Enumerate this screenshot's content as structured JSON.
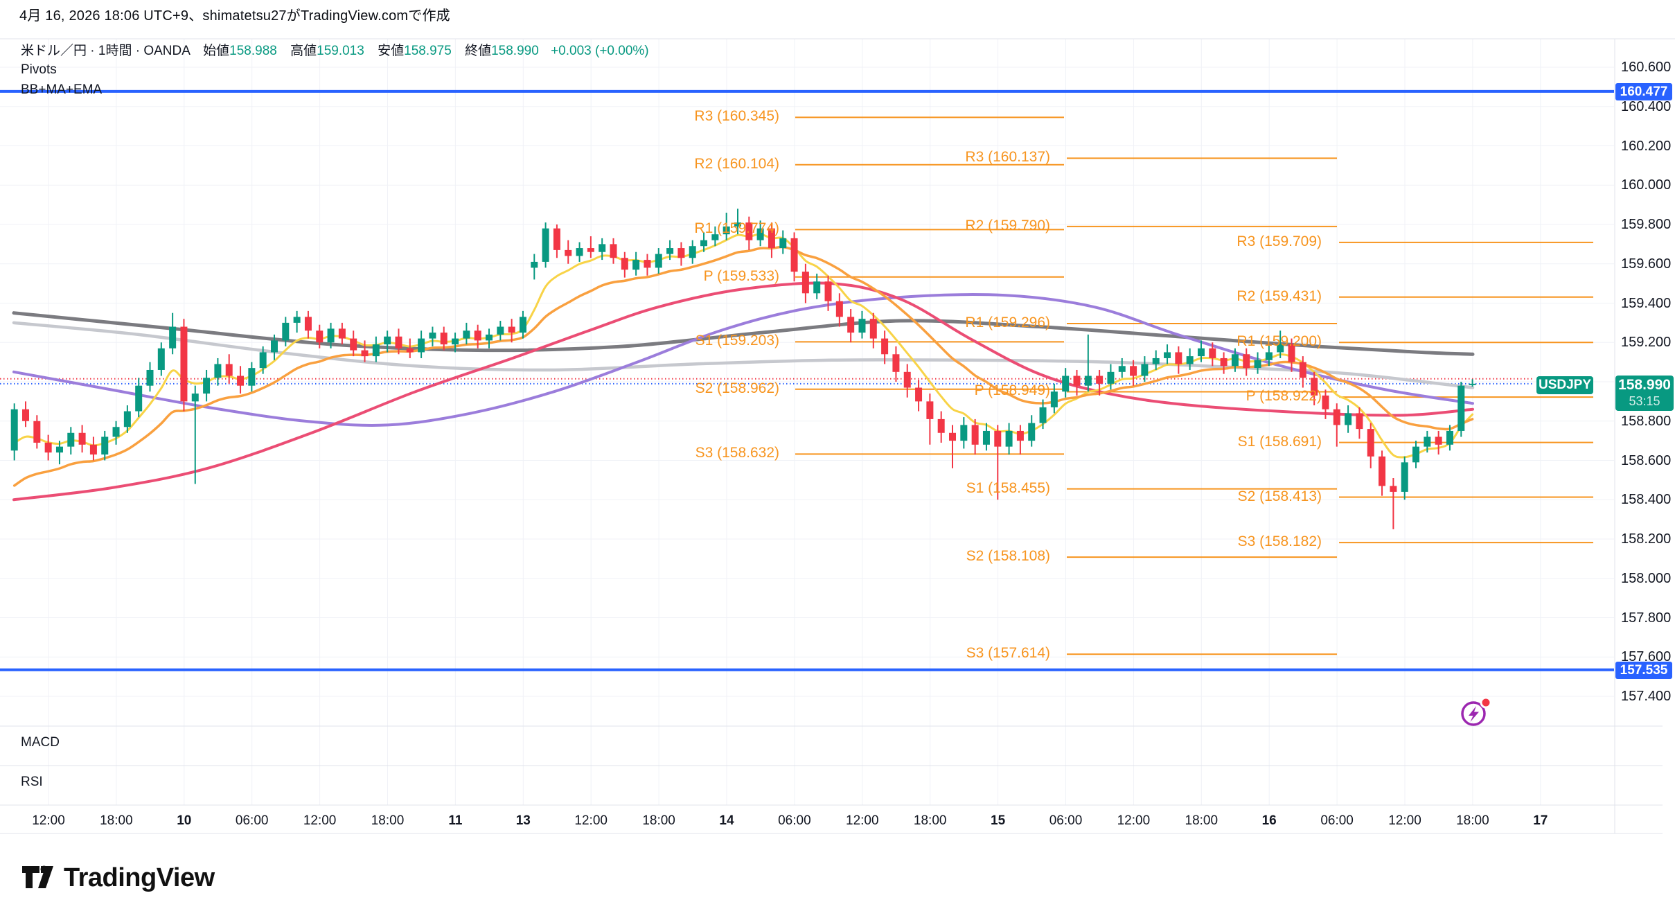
{
  "header": {
    "created_line": "4月 16, 2026 18:06 UTC+9、shimatetsu27がTradingView.comで作成"
  },
  "symbol_row": {
    "title": "米ドル／円 · 1時間 · OANDA",
    "open_label": "始値",
    "open": "158.988",
    "high_label": "高値",
    "high": "159.013",
    "low_label": "安値",
    "low": "158.975",
    "close_label": "終値",
    "close": "158.990",
    "change": "+0.003 (+0.00%)"
  },
  "legend": {
    "indicator1": "Pivots",
    "indicator2": "BB+MA+EMA"
  },
  "panes": {
    "macd_label": "MACD",
    "rsi_label": "RSI"
  },
  "price_tag": {
    "symbol": "USDJPY",
    "price": "158.990",
    "countdown": "53:15"
  },
  "axis_tags": {
    "upper_band": "160.477",
    "lower_band": "157.535"
  },
  "logo": {
    "text": "TradingView"
  },
  "colors": {
    "up": "#089981",
    "down": "#f23645",
    "blue": "#2962ff",
    "pivot": "#f7941e",
    "ema_fast": "#f8d347",
    "ema_slow": "#f9a03f",
    "ma_pink": "#eb4d74",
    "ma_purple": "#9b7ddb",
    "ma_gray_dark": "#7b7b80",
    "ma_gray_light": "#c6c8ce",
    "grid": "#f0f2f7",
    "separator": "#e0e3eb",
    "text": "#131722",
    "flash_purple": "#9c27b0",
    "flash_dot": "#f23645"
  },
  "chart_data": {
    "type": "candlestick",
    "symbol": "USDJPY",
    "timeframe": "1時間",
    "source": "OANDA",
    "ohlc_current": {
      "open": 158.988,
      "high": 159.013,
      "low": 158.975,
      "close": 158.99,
      "change_text": "+0.003 (+0.00%)"
    },
    "y_axis": {
      "min": 157.4,
      "max": 160.6,
      "tick_step": 0.2,
      "ticks": [
        160.6,
        160.4,
        160.2,
        160.0,
        159.8,
        159.6,
        159.4,
        159.2,
        159.0,
        158.8,
        158.6,
        158.4,
        158.2,
        158.0,
        157.8,
        157.6,
        157.4
      ]
    },
    "x_axis": {
      "labels": [
        "12:00",
        "18:00",
        "10",
        "06:00",
        "12:00",
        "18:00",
        "11",
        "13",
        "12:00",
        "18:00",
        "14",
        "06:00",
        "12:00",
        "18:00",
        "15",
        "06:00",
        "12:00",
        "18:00",
        "16",
        "06:00",
        "12:00",
        "18:00",
        "17"
      ]
    },
    "levels": {
      "upper_band": 160.477,
      "lower_band": 157.535
    },
    "price_lines": {
      "close_line": 158.99,
      "reference_line": 159.015
    },
    "pivot_sets": [
      {
        "pivots": [
          [
            "R3",
            160.345
          ],
          [
            "R2",
            160.104
          ],
          [
            "R1",
            159.774
          ],
          [
            "P",
            159.533
          ],
          [
            "S1",
            159.203
          ],
          [
            "S2",
            158.962
          ],
          [
            "S3",
            158.632
          ]
        ]
      },
      {
        "pivots": [
          [
            "R3",
            160.137
          ],
          [
            "R2",
            159.79
          ],
          [
            "R1",
            159.296
          ],
          [
            "P",
            158.949
          ],
          [
            "S1",
            158.455
          ],
          [
            "S2",
            158.108
          ],
          [
            "S3",
            157.614
          ]
        ]
      },
      {
        "pivots": [
          [
            "R3",
            159.709
          ],
          [
            "R2",
            159.431
          ],
          [
            "R1",
            159.2
          ],
          [
            "P",
            158.922
          ],
          [
            "S1",
            158.691
          ],
          [
            "S2",
            158.413
          ],
          [
            "S3",
            158.182
          ]
        ]
      }
    ],
    "candles": [
      [
        158.65,
        158.89,
        158.6,
        158.86
      ],
      [
        158.86,
        158.9,
        158.77,
        158.8
      ],
      [
        158.8,
        158.83,
        158.66,
        158.69
      ],
      [
        158.69,
        158.73,
        158.6,
        158.64
      ],
      [
        158.64,
        158.7,
        158.58,
        158.67
      ],
      [
        158.67,
        158.77,
        158.63,
        158.74
      ],
      [
        158.74,
        158.78,
        158.64,
        158.68
      ],
      [
        158.68,
        158.72,
        158.6,
        158.63
      ],
      [
        158.63,
        158.75,
        158.6,
        158.72
      ],
      [
        158.72,
        158.8,
        158.68,
        158.77
      ],
      [
        158.77,
        158.88,
        158.74,
        158.85
      ],
      [
        158.85,
        159.02,
        158.82,
        158.98
      ],
      [
        158.98,
        159.1,
        158.95,
        159.06
      ],
      [
        159.06,
        159.2,
        159.03,
        159.17
      ],
      [
        159.17,
        159.35,
        159.14,
        159.28
      ],
      [
        159.28,
        159.32,
        158.85,
        158.9
      ],
      [
        158.9,
        158.98,
        158.48,
        158.94
      ],
      [
        158.94,
        159.06,
        158.9,
        159.02
      ],
      [
        159.02,
        159.12,
        158.98,
        159.09
      ],
      [
        159.09,
        159.14,
        158.99,
        159.03
      ],
      [
        159.03,
        159.08,
        158.94,
        158.98
      ],
      [
        158.98,
        159.1,
        158.95,
        159.07
      ],
      [
        159.07,
        159.18,
        159.04,
        159.15
      ],
      [
        159.15,
        159.24,
        159.11,
        159.21
      ],
      [
        159.21,
        159.33,
        159.18,
        159.3
      ],
      [
        159.3,
        159.36,
        159.25,
        159.33
      ],
      [
        159.33,
        159.36,
        159.22,
        159.26
      ],
      [
        159.26,
        159.29,
        159.17,
        159.2
      ],
      [
        159.2,
        159.3,
        159.17,
        159.27
      ],
      [
        159.27,
        159.3,
        159.19,
        159.22
      ],
      [
        159.22,
        159.26,
        159.13,
        159.16
      ],
      [
        159.16,
        159.21,
        159.1,
        159.13
      ],
      [
        159.13,
        159.23,
        159.1,
        159.19
      ],
      [
        159.19,
        159.26,
        159.15,
        159.23
      ],
      [
        159.23,
        159.27,
        159.14,
        159.17
      ],
      [
        159.17,
        159.22,
        159.12,
        159.15
      ],
      [
        159.15,
        159.26,
        159.12,
        159.22
      ],
      [
        159.22,
        159.28,
        159.18,
        159.25
      ],
      [
        159.25,
        159.28,
        159.16,
        159.19
      ],
      [
        159.19,
        159.25,
        159.15,
        159.22
      ],
      [
        159.22,
        159.3,
        159.19,
        159.26
      ],
      [
        159.26,
        159.29,
        159.17,
        159.21
      ],
      [
        159.21,
        159.27,
        159.17,
        159.24
      ],
      [
        159.24,
        159.31,
        159.21,
        159.28
      ],
      [
        159.28,
        159.32,
        159.2,
        159.25
      ],
      [
        159.25,
        159.36,
        159.22,
        159.33
      ],
      [
        159.58,
        159.65,
        159.52,
        159.61
      ],
      [
        159.61,
        159.81,
        159.58,
        159.78
      ],
      [
        159.78,
        159.8,
        159.63,
        159.67
      ],
      [
        159.67,
        159.72,
        159.6,
        159.64
      ],
      [
        159.64,
        159.71,
        159.61,
        159.68
      ],
      [
        159.68,
        159.74,
        159.63,
        159.66
      ],
      [
        159.66,
        159.73,
        159.62,
        159.7
      ],
      [
        159.7,
        159.73,
        159.6,
        159.63
      ],
      [
        159.63,
        159.66,
        159.53,
        159.57
      ],
      [
        159.57,
        159.66,
        159.54,
        159.62
      ],
      [
        159.62,
        159.65,
        159.54,
        159.58
      ],
      [
        159.58,
        159.68,
        159.55,
        159.65
      ],
      [
        159.65,
        159.72,
        159.62,
        159.68
      ],
      [
        159.68,
        159.71,
        159.59,
        159.63
      ],
      [
        159.63,
        159.72,
        159.6,
        159.69
      ],
      [
        159.69,
        159.76,
        159.66,
        159.72
      ],
      [
        159.72,
        159.79,
        159.69,
        159.75
      ],
      [
        159.75,
        159.86,
        159.72,
        159.79
      ],
      [
        159.79,
        159.88,
        159.75,
        159.81
      ],
      [
        159.81,
        159.84,
        159.67,
        159.72
      ],
      [
        159.72,
        159.82,
        159.69,
        159.78
      ],
      [
        159.78,
        159.81,
        159.63,
        159.68
      ],
      [
        159.68,
        159.77,
        159.65,
        159.73
      ],
      [
        159.73,
        159.76,
        159.51,
        159.56
      ],
      [
        159.56,
        159.6,
        159.4,
        159.45
      ],
      [
        159.45,
        159.55,
        159.42,
        159.51
      ],
      [
        159.51,
        159.54,
        159.36,
        159.41
      ],
      [
        159.41,
        159.45,
        159.28,
        159.33
      ],
      [
        159.33,
        159.37,
        159.2,
        159.25
      ],
      [
        159.25,
        159.36,
        159.22,
        159.32
      ],
      [
        159.32,
        159.35,
        159.17,
        159.22
      ],
      [
        159.22,
        159.26,
        159.09,
        159.14
      ],
      [
        159.14,
        159.18,
        159.0,
        159.05
      ],
      [
        159.05,
        159.09,
        158.92,
        158.97
      ],
      [
        158.97,
        159.01,
        158.85,
        158.9
      ],
      [
        158.9,
        158.94,
        158.68,
        158.81
      ],
      [
        158.81,
        158.85,
        158.69,
        158.74
      ],
      [
        158.74,
        158.78,
        158.56,
        158.7
      ],
      [
        158.7,
        158.82,
        158.66,
        158.78
      ],
      [
        158.78,
        158.81,
        158.63,
        158.68
      ],
      [
        158.68,
        158.79,
        158.65,
        158.75
      ],
      [
        158.75,
        158.78,
        158.4,
        158.67
      ],
      [
        158.67,
        158.79,
        158.63,
        158.75
      ],
      [
        158.75,
        158.78,
        158.63,
        158.7
      ],
      [
        158.7,
        158.83,
        158.67,
        158.79
      ],
      [
        158.79,
        158.91,
        158.76,
        158.87
      ],
      [
        158.87,
        158.99,
        158.84,
        158.95
      ],
      [
        158.95,
        159.07,
        158.92,
        159.03
      ],
      [
        159.03,
        159.06,
        158.93,
        158.98
      ],
      [
        158.98,
        159.24,
        158.95,
        159.03
      ],
      [
        159.03,
        159.06,
        158.93,
        158.99
      ],
      [
        158.99,
        159.09,
        158.96,
        159.05
      ],
      [
        159.05,
        159.12,
        159.02,
        159.08
      ],
      [
        159.08,
        159.11,
        158.98,
        159.03
      ],
      [
        159.03,
        159.13,
        159.0,
        159.09
      ],
      [
        159.09,
        159.16,
        159.06,
        159.12
      ],
      [
        159.12,
        159.19,
        159.09,
        159.15
      ],
      [
        159.15,
        159.18,
        159.04,
        159.09
      ],
      [
        159.09,
        159.17,
        159.06,
        159.13
      ],
      [
        159.13,
        159.21,
        159.1,
        159.17
      ],
      [
        159.17,
        159.2,
        159.08,
        159.12
      ],
      [
        159.12,
        159.15,
        159.04,
        159.08
      ],
      [
        159.08,
        159.17,
        159.05,
        159.14
      ],
      [
        159.14,
        159.17,
        159.03,
        159.07
      ],
      [
        159.07,
        159.15,
        159.04,
        159.11
      ],
      [
        159.11,
        159.19,
        159.08,
        159.15
      ],
      [
        159.15,
        159.26,
        159.12,
        159.19
      ],
      [
        159.19,
        159.22,
        159.05,
        159.1
      ],
      [
        159.1,
        159.13,
        158.97,
        159.02
      ],
      [
        159.02,
        159.05,
        158.88,
        158.93
      ],
      [
        158.93,
        158.96,
        158.81,
        158.86
      ],
      [
        158.86,
        158.89,
        158.67,
        158.78
      ],
      [
        158.78,
        158.88,
        158.74,
        158.84
      ],
      [
        158.84,
        158.87,
        158.71,
        158.76
      ],
      [
        158.76,
        158.79,
        158.56,
        158.62
      ],
      [
        158.62,
        158.65,
        158.42,
        158.47
      ],
      [
        158.47,
        158.51,
        158.25,
        158.44
      ],
      [
        158.44,
        158.62,
        158.4,
        158.59
      ],
      [
        158.59,
        158.7,
        158.56,
        158.67
      ],
      [
        158.67,
        158.75,
        158.64,
        158.72
      ],
      [
        158.72,
        158.75,
        158.63,
        158.68
      ],
      [
        158.68,
        158.78,
        158.65,
        158.75
      ],
      [
        158.75,
        159.0,
        158.72,
        158.98
      ],
      [
        158.988,
        159.013,
        158.975,
        158.99
      ]
    ],
    "ma_lines": {
      "computed": [
        {
          "name": "ema-fast",
          "type": "ema",
          "period": 6,
          "seed": 158.62,
          "color_key": "ema_fast",
          "width": 3
        },
        {
          "name": "ema-slow",
          "type": "ema",
          "period": 16,
          "seed": 158.42,
          "color_key": "ema_slow",
          "width": 3.5
        }
      ],
      "waypoint_lines": [
        {
          "name": "ma-gray-light",
          "color_key": "ma_gray_light",
          "width": 4.5,
          "points": [
            [
              20,
              159.3
            ],
            [
              200,
              159.24
            ],
            [
              400,
              159.15
            ],
            [
              600,
              159.08
            ],
            [
              800,
              159.06
            ],
            [
              1000,
              159.09
            ],
            [
              1200,
              159.11
            ],
            [
              1400,
              159.11
            ],
            [
              1600,
              159.1
            ],
            [
              1800,
              159.07
            ],
            [
              1950,
              159.04
            ],
            [
              2126,
              158.97
            ]
          ]
        },
        {
          "name": "ma-gray-dark",
          "color_key": "ma_gray_dark",
          "width": 5,
          "points": [
            [
              20,
              159.35
            ],
            [
              250,
              159.27
            ],
            [
              480,
              159.19
            ],
            [
              700,
              159.16
            ],
            [
              900,
              159.18
            ],
            [
              1100,
              159.25
            ],
            [
              1300,
              159.31
            ],
            [
              1500,
              159.28
            ],
            [
              1700,
              159.23
            ],
            [
              1900,
              159.18
            ],
            [
              2050,
              159.15
            ],
            [
              2126,
              159.14
            ]
          ]
        },
        {
          "name": "ma-purple",
          "color_key": "ma_purple",
          "width": 4,
          "points": [
            [
              20,
              159.05
            ],
            [
              160,
              158.96
            ],
            [
              300,
              158.87
            ],
            [
              440,
              158.8
            ],
            [
              560,
              158.78
            ],
            [
              680,
              158.84
            ],
            [
              800,
              158.95
            ],
            [
              920,
              159.1
            ],
            [
              1040,
              159.26
            ],
            [
              1160,
              159.37
            ],
            [
              1300,
              159.43
            ],
            [
              1450,
              159.44
            ],
            [
              1580,
              159.38
            ],
            [
              1700,
              159.24
            ],
            [
              1850,
              159.08
            ],
            [
              2000,
              158.96
            ],
            [
              2126,
              158.89
            ]
          ]
        },
        {
          "name": "ma-pink",
          "color_key": "ma_pink",
          "width": 4,
          "points": [
            [
              20,
              158.4
            ],
            [
              160,
              158.46
            ],
            [
              300,
              158.56
            ],
            [
              450,
              158.74
            ],
            [
              600,
              158.95
            ],
            [
              740,
              159.12
            ],
            [
              850,
              159.26
            ],
            [
              950,
              159.38
            ],
            [
              1070,
              159.47
            ],
            [
              1200,
              159.5
            ],
            [
              1300,
              159.42
            ],
            [
              1400,
              159.22
            ],
            [
              1500,
              159.04
            ],
            [
              1600,
              158.94
            ],
            [
              1720,
              158.88
            ],
            [
              1900,
              158.84
            ],
            [
              2030,
              158.83
            ],
            [
              2126,
              158.86
            ]
          ]
        }
      ]
    }
  }
}
